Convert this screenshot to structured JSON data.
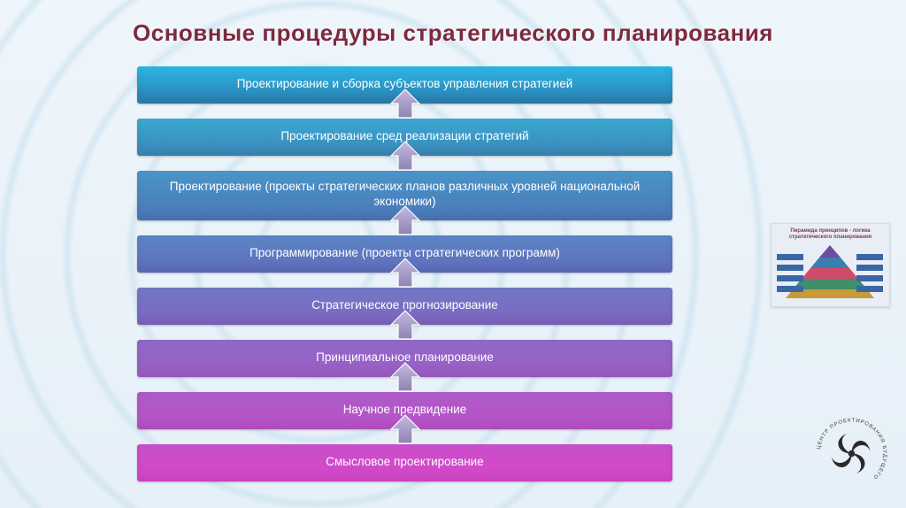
{
  "title": {
    "text": "Основные процедуры стратегического планирования",
    "color": "#7d2a3e",
    "shadow_color": "#ffffff",
    "fontsize": 26
  },
  "diagram": {
    "type": "stacked-bars-with-up-arrows",
    "slab_width": 605,
    "slab_font_color": "#ffffff",
    "slab_fontsize": 13.5,
    "slab_border_radius": 3,
    "arrow": {
      "width": 40,
      "height": 36,
      "fill_top": "#c2b8e0",
      "fill_bottom": "#8f84b1",
      "stroke": "#ffffff",
      "stroke_width": 1.2
    },
    "slabs": [
      {
        "label": "Проектирование и сборка субъектов управления стратегией",
        "height": 42,
        "gradient_top": "#2cb5e3",
        "gradient_bottom": "#2a7fb0"
      },
      {
        "label": "Проектирование сред реализации стратегий",
        "height": 42,
        "gradient_top": "#3aa8d2",
        "gradient_bottom": "#3b87b9"
      },
      {
        "label": "Проектирование (проекты стратегических планов различных уровней национальной экономики)",
        "height": 56,
        "gradient_top": "#4a95c7",
        "gradient_bottom": "#4a77b8"
      },
      {
        "label": "Программирование (проекты стратегических программ)",
        "height": 42,
        "gradient_top": "#5b85c4",
        "gradient_bottom": "#606dbd"
      },
      {
        "label": "Стратегическое прогнозирование",
        "height": 42,
        "gradient_top": "#7377c5",
        "gradient_bottom": "#7f66c2"
      },
      {
        "label": "Принципиальное планирование",
        "height": 42,
        "gradient_top": "#8e69c6",
        "gradient_bottom": "#9d5dc6"
      },
      {
        "label": "Научное предвидение",
        "height": 42,
        "gradient_top": "#ab5bc7",
        "gradient_bottom": "#bb52c8"
      },
      {
        "label": "Смысловое проектирование",
        "height": 42,
        "gradient_top": "#c84ec9",
        "gradient_bottom": "#d647ca"
      }
    ]
  },
  "thumbnail": {
    "title": "Пирамида принципов -\nлогика стратегического планирования",
    "pyramid_colors": [
      "#6a4fa0",
      "#3a7fae",
      "#d14a6a",
      "#3f8f6a",
      "#c79a3a"
    ],
    "label_box_color": "#3a66a5",
    "label_text_color": "#ffffff",
    "bg": "#e9eef6"
  },
  "logo": {
    "ring_text": "ЦЕНТР ПРОЕКТИРОВАНИЯ БУДУЩЕГО",
    "ring_color": "#3a3a3a",
    "swirl_color": "#2a2a2a"
  },
  "background": {
    "base_top": "#eef5fb",
    "base_bottom": "#e6f0f8",
    "ripple_color": "#bedceb"
  }
}
